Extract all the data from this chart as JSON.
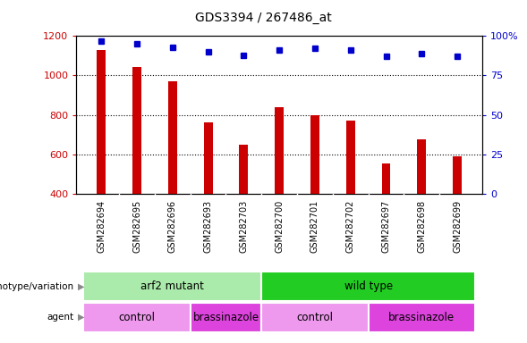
{
  "title": "GDS3394 / 267486_at",
  "samples": [
    "GSM282694",
    "GSM282695",
    "GSM282696",
    "GSM282693",
    "GSM282703",
    "GSM282700",
    "GSM282701",
    "GSM282702",
    "GSM282697",
    "GSM282698",
    "GSM282699"
  ],
  "counts": [
    1130,
    1045,
    970,
    760,
    650,
    840,
    800,
    770,
    555,
    675,
    590
  ],
  "percentile_ranks": [
    97,
    95,
    93,
    90,
    88,
    91,
    92,
    91,
    87,
    89,
    87
  ],
  "ylim_left": [
    400,
    1200
  ],
  "ylim_right": [
    0,
    100
  ],
  "yticks_left": [
    400,
    600,
    800,
    1000,
    1200
  ],
  "yticks_right": [
    0,
    25,
    50,
    75,
    100
  ],
  "yticklabels_right": [
    "0",
    "25",
    "50",
    "75",
    "100%"
  ],
  "bar_color": "#cc0000",
  "dot_color": "#0000cc",
  "genotype_groups": [
    {
      "label": "arf2 mutant",
      "start": 0,
      "end": 5,
      "color": "#aaeaaa"
    },
    {
      "label": "wild type",
      "start": 5,
      "end": 11,
      "color": "#22cc22"
    }
  ],
  "agent_groups": [
    {
      "label": "control",
      "start": 0,
      "end": 3,
      "color": "#ee99ee"
    },
    {
      "label": "brassinazole",
      "start": 3,
      "end": 5,
      "color": "#dd44dd"
    },
    {
      "label": "control",
      "start": 5,
      "end": 8,
      "color": "#ee99ee"
    },
    {
      "label": "brassinazole",
      "start": 8,
      "end": 11,
      "color": "#dd44dd"
    }
  ],
  "axis_tick_color_left": "#cc0000",
  "axis_tick_color_right": "#0000cc",
  "xtick_bg_color": "#c8c8c8",
  "plot_bg": "#ffffff"
}
